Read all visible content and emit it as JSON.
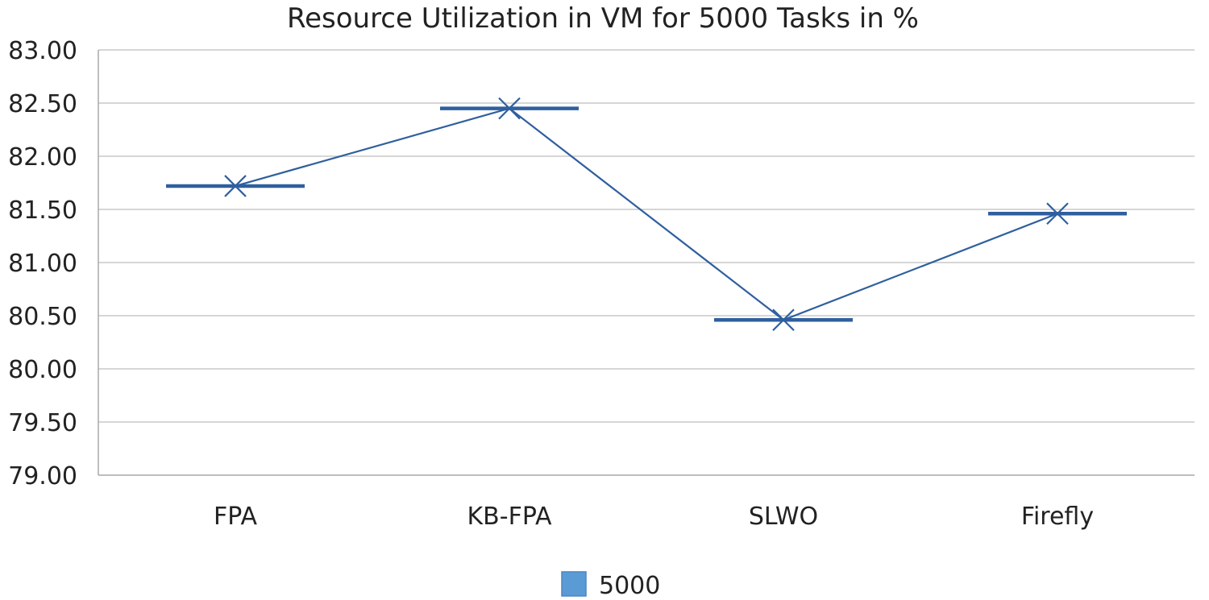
{
  "chart_data": {
    "type": "line",
    "title": "Resource Utilization in VM for 5000 Tasks in %",
    "xlabel": "",
    "ylabel": "",
    "categories": [
      "FPA",
      "KB-FPA",
      "SLWO",
      "Firefly"
    ],
    "series": [
      {
        "name": "5000",
        "values": [
          81.72,
          82.45,
          80.46,
          81.46
        ]
      }
    ],
    "ylim": [
      79.0,
      83.0
    ],
    "yticks": [
      "79.00",
      "79.50",
      "80.00",
      "80.50",
      "81.00",
      "81.50",
      "82.00",
      "82.50",
      "83.00"
    ],
    "grid": true,
    "legend_position": "bottom",
    "marker": "x-with-dash",
    "colors": {
      "line": "#2f5f9e",
      "marker": "#2f5f9e",
      "legend_swatch": "#5b9bd5",
      "grid": "#c8c8c8"
    }
  }
}
